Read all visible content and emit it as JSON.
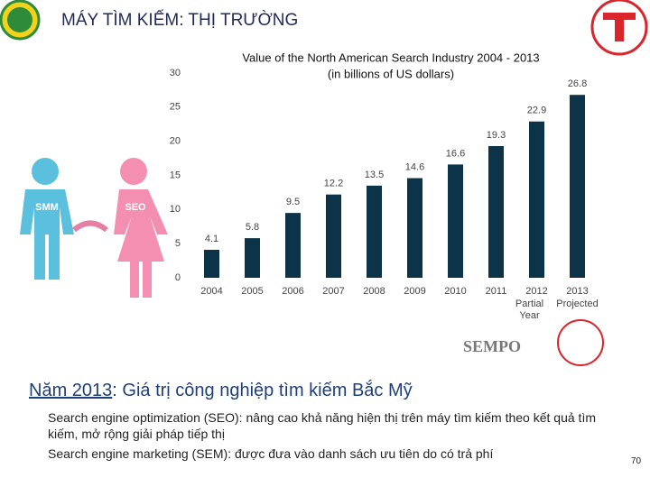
{
  "slide": {
    "header": "MÁY TÌM KIẾM: THỊ TRƯỜNG",
    "heading_year": "Năm 2013",
    "heading_rest": ": Giá trị công nghiệp tìm kiếm Bắc Mỹ",
    "bullets": [
      "Search engine optimization (SEO): nâng cao khả năng hiện thị trên máy tìm kiếm theo kết quả tìm kiếm, mở rộng giải pháp tiếp thị",
      "Search engine marketing (SEM): được đưa vào danh sách ưu tiên do có trả phí"
    ],
    "figure_left": "SMM",
    "figure_right": "SEO",
    "source": "SEMPO",
    "page_number": "70"
  },
  "chart_data": {
    "type": "bar",
    "title": "Value of the North American Search Industry 2004 - 2013",
    "subtitle": "(in billions of US dollars)",
    "categories": [
      "2004",
      "2005",
      "2006",
      "2007",
      "2008",
      "2009",
      "2010",
      "2011",
      "2012",
      "2013"
    ],
    "category_notes": [
      null,
      null,
      null,
      null,
      null,
      null,
      null,
      null,
      "Partial Year",
      "Projected"
    ],
    "values": [
      4.1,
      5.8,
      9.5,
      12.2,
      13.5,
      14.6,
      16.6,
      19.3,
      22.9,
      26.8
    ],
    "color": "#0d3349",
    "ylim": [
      0,
      30
    ],
    "yticks": [
      0,
      5,
      10,
      15,
      20,
      25,
      30
    ],
    "grid": false
  }
}
